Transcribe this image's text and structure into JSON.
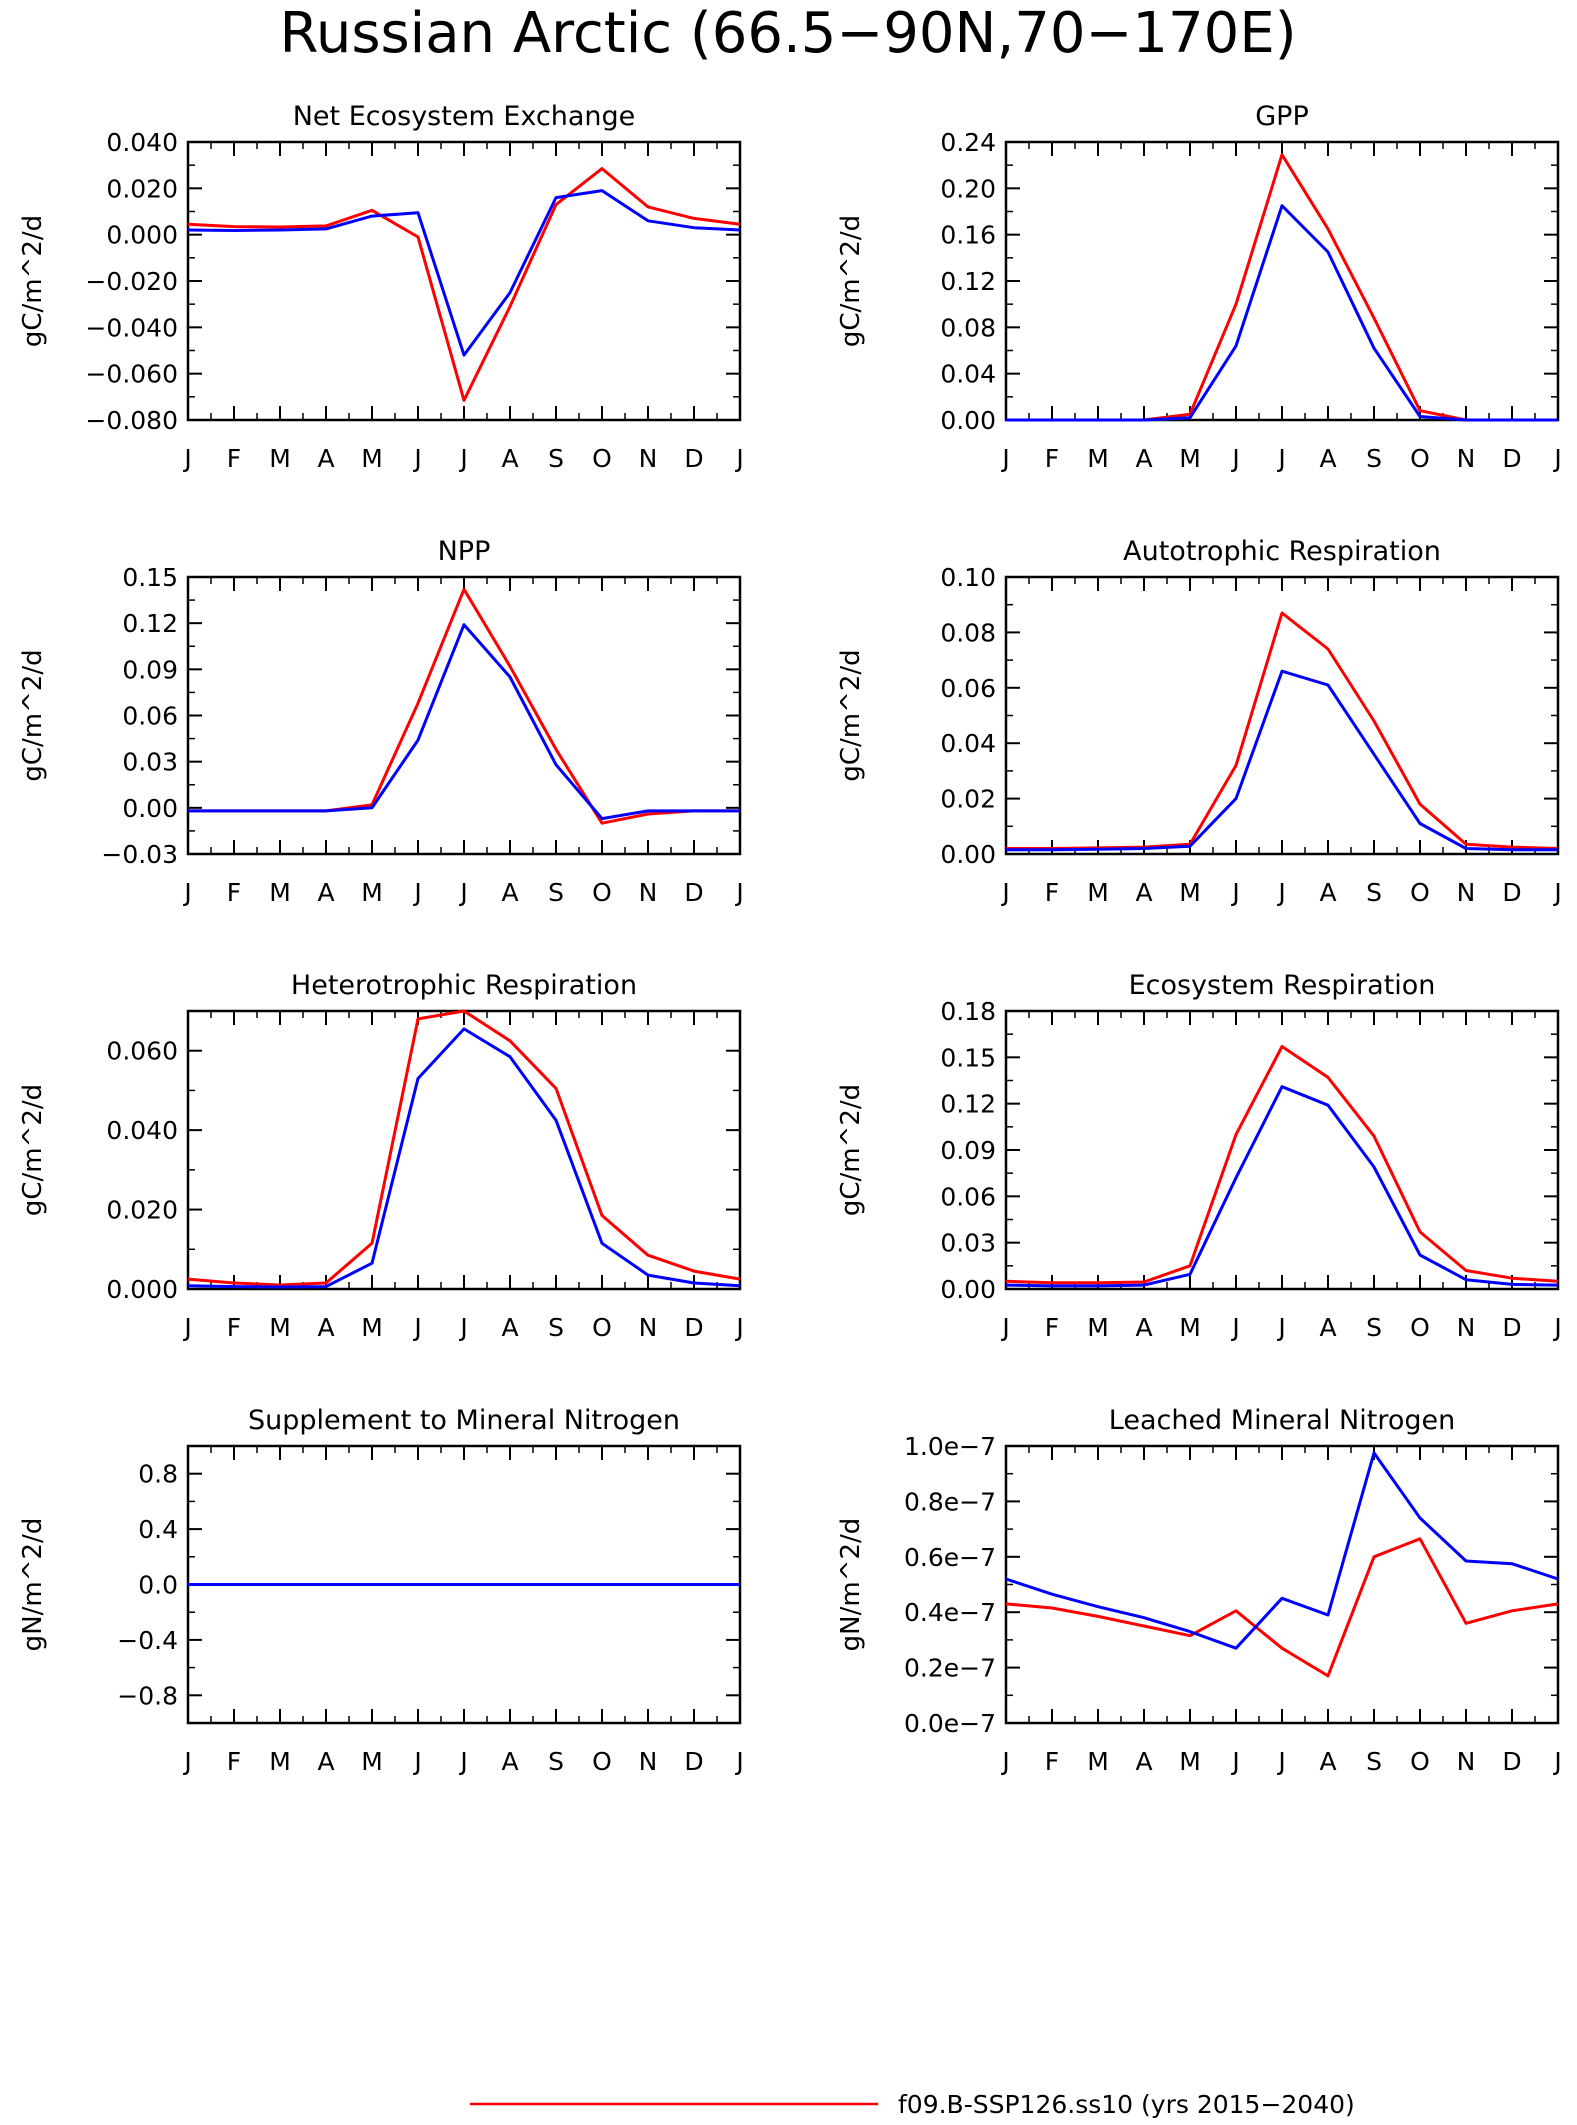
{
  "page_title": "Russian Arctic (66.5−90N,70−170E)",
  "colors": {
    "series1": "#ff0000",
    "series2": "#0000ff",
    "axis": "#000000"
  },
  "legend": {
    "series1_label": "f09.B-SSP126.ss10 (yrs 2015−2040)"
  },
  "chart_data": [
    {
      "type": "line",
      "title": "Net Ecosystem Exchange",
      "ylabel": "gC/m^2/d",
      "categories": [
        "J",
        "F",
        "M",
        "A",
        "M",
        "J",
        "J",
        "A",
        "S",
        "O",
        "N",
        "D",
        "J"
      ],
      "ylim": [
        -0.08,
        0.04
      ],
      "yticks": [
        -0.08,
        -0.06,
        -0.04,
        -0.02,
        0.0,
        0.02,
        0.04
      ],
      "ytick_labels": [
        "−0.080",
        "−0.060",
        "−0.040",
        "−0.020",
        "0.000",
        "0.020",
        "0.040"
      ],
      "series": [
        {
          "values": [
            0.0045,
            0.0035,
            0.0033,
            0.0038,
            0.0105,
            -0.001,
            -0.0715,
            -0.031,
            0.013,
            0.0285,
            0.012,
            0.007,
            0.0045
          ]
        },
        {
          "values": [
            0.002,
            0.0018,
            0.002,
            0.0025,
            0.008,
            0.0095,
            -0.052,
            -0.025,
            0.016,
            0.019,
            0.006,
            0.003,
            0.002
          ]
        }
      ]
    },
    {
      "type": "line",
      "title": "GPP",
      "ylabel": "gC/m^2/d",
      "categories": [
        "J",
        "F",
        "M",
        "A",
        "M",
        "J",
        "J",
        "A",
        "S",
        "O",
        "N",
        "D",
        "J"
      ],
      "ylim": [
        0.0,
        0.24
      ],
      "yticks": [
        0.0,
        0.04,
        0.08,
        0.12,
        0.16,
        0.2,
        0.24
      ],
      "ytick_labels": [
        "0.00",
        "0.04",
        "0.08",
        "0.12",
        "0.16",
        "0.20",
        "0.24"
      ],
      "series": [
        {
          "values": [
            0.0,
            0.0,
            0.0,
            0.0,
            0.005,
            0.1,
            0.229,
            0.165,
            0.088,
            0.008,
            0.0,
            0.0,
            0.0
          ]
        },
        {
          "values": [
            0.0,
            0.0,
            0.0,
            0.0,
            0.002,
            0.064,
            0.185,
            0.145,
            0.062,
            0.003,
            0.0,
            0.0,
            0.0
          ]
        }
      ]
    },
    {
      "type": "line",
      "title": "NPP",
      "ylabel": "gC/m^2/d",
      "categories": [
        "J",
        "F",
        "M",
        "A",
        "M",
        "J",
        "J",
        "A",
        "S",
        "O",
        "N",
        "D",
        "J"
      ],
      "ylim": [
        -0.03,
        0.15
      ],
      "yticks": [
        -0.03,
        0.0,
        0.03,
        0.06,
        0.09,
        0.12,
        0.15
      ],
      "ytick_labels": [
        "−0.03",
        "0.00",
        "0.03",
        "0.06",
        "0.09",
        "0.12",
        "0.15"
      ],
      "series": [
        {
          "values": [
            -0.002,
            -0.002,
            -0.002,
            -0.002,
            0.002,
            0.068,
            0.142,
            0.092,
            0.038,
            -0.01,
            -0.004,
            -0.002,
            -0.002
          ]
        },
        {
          "values": [
            -0.002,
            -0.002,
            -0.002,
            -0.002,
            0.0,
            0.044,
            0.119,
            0.085,
            0.028,
            -0.007,
            -0.002,
            -0.002,
            -0.002
          ]
        }
      ]
    },
    {
      "type": "line",
      "title": "Autotrophic Respiration",
      "ylabel": "gC/m^2/d",
      "categories": [
        "J",
        "F",
        "M",
        "A",
        "M",
        "J",
        "J",
        "A",
        "S",
        "O",
        "N",
        "D",
        "J"
      ],
      "ylim": [
        0.0,
        0.1
      ],
      "yticks": [
        0.0,
        0.02,
        0.04,
        0.06,
        0.08,
        0.1
      ],
      "ytick_labels": [
        "0.00",
        "0.02",
        "0.04",
        "0.06",
        "0.08",
        "0.10"
      ],
      "series": [
        {
          "values": [
            0.002,
            0.002,
            0.0022,
            0.0025,
            0.0035,
            0.032,
            0.087,
            0.074,
            0.048,
            0.018,
            0.0035,
            0.0025,
            0.002
          ]
        },
        {
          "values": [
            0.0015,
            0.0015,
            0.0017,
            0.002,
            0.0028,
            0.02,
            0.066,
            0.061,
            0.036,
            0.011,
            0.002,
            0.0015,
            0.0015
          ]
        }
      ]
    },
    {
      "type": "line",
      "title": "Heterotrophic Respiration",
      "ylabel": "gC/m^2/d",
      "categories": [
        "J",
        "F",
        "M",
        "A",
        "M",
        "J",
        "J",
        "A",
        "S",
        "O",
        "N",
        "D",
        "J"
      ],
      "ylim": [
        0.0,
        0.07
      ],
      "yticks": [
        0.0,
        0.02,
        0.04,
        0.06
      ],
      "ytick_labels": [
        "0.000",
        "0.020",
        "0.040",
        "0.060"
      ],
      "series": [
        {
          "values": [
            0.0025,
            0.0015,
            0.001,
            0.0015,
            0.0115,
            0.068,
            0.07,
            0.0625,
            0.0505,
            0.0185,
            0.0085,
            0.0045,
            0.0025
          ]
        },
        {
          "values": [
            0.0008,
            0.0006,
            0.0005,
            0.0006,
            0.0065,
            0.053,
            0.0655,
            0.0585,
            0.0425,
            0.0115,
            0.0035,
            0.0015,
            0.0008
          ]
        }
      ]
    },
    {
      "type": "line",
      "title": "Ecosystem Respiration",
      "ylabel": "gC/m^2/d",
      "categories": [
        "J",
        "F",
        "M",
        "A",
        "M",
        "J",
        "J",
        "A",
        "S",
        "O",
        "N",
        "D",
        "J"
      ],
      "ylim": [
        0.0,
        0.18
      ],
      "yticks": [
        0.0,
        0.03,
        0.06,
        0.09,
        0.12,
        0.15,
        0.18
      ],
      "ytick_labels": [
        "0.00",
        "0.03",
        "0.06",
        "0.09",
        "0.12",
        "0.15",
        "0.18"
      ],
      "series": [
        {
          "values": [
            0.005,
            0.004,
            0.004,
            0.0045,
            0.015,
            0.1,
            0.157,
            0.137,
            0.099,
            0.037,
            0.012,
            0.007,
            0.005
          ]
        },
        {
          "values": [
            0.0025,
            0.002,
            0.002,
            0.0025,
            0.0095,
            0.072,
            0.131,
            0.119,
            0.079,
            0.022,
            0.006,
            0.003,
            0.0025
          ]
        }
      ]
    },
    {
      "type": "line",
      "title": "Supplement to Mineral Nitrogen",
      "ylabel": "gN/m^2/d",
      "categories": [
        "J",
        "F",
        "M",
        "A",
        "M",
        "J",
        "J",
        "A",
        "S",
        "O",
        "N",
        "D",
        "J"
      ],
      "ylim": [
        -1.0,
        1.0
      ],
      "yticks": [
        -0.8,
        -0.4,
        0.0,
        0.4,
        0.8
      ],
      "ytick_labels": [
        "−0.8",
        "−0.4",
        "0.0",
        "0.4",
        "0.8"
      ],
      "series": [
        {
          "values": [
            0,
            0,
            0,
            0,
            0,
            0,
            0,
            0,
            0,
            0,
            0,
            0,
            0
          ]
        },
        {
          "values": [
            0,
            0,
            0,
            0,
            0,
            0,
            0,
            0,
            0,
            0,
            0,
            0,
            0
          ]
        }
      ]
    },
    {
      "type": "line",
      "title": "Leached Mineral Nitrogen",
      "ylabel": "gN/m^2/d",
      "categories": [
        "J",
        "F",
        "M",
        "A",
        "M",
        "J",
        "J",
        "A",
        "S",
        "O",
        "N",
        "D",
        "J"
      ],
      "ylim": [
        0.0,
        1e-07
      ],
      "yticks": [
        0.0,
        2e-08,
        4e-08,
        6e-08,
        8e-08,
        1e-07
      ],
      "ytick_labels": [
        "0.0e−7",
        "0.2e−7",
        "0.4e−7",
        "0.6e−7",
        "0.8e−7",
        "1.0e−7"
      ],
      "series": [
        {
          "values": [
            4.3e-08,
            4.15e-08,
            3.85e-08,
            3.5e-08,
            3.15e-08,
            4.05e-08,
            2.7e-08,
            1.7e-08,
            6e-08,
            6.65e-08,
            3.6e-08,
            4.05e-08,
            4.3e-08
          ]
        },
        {
          "values": [
            5.2e-08,
            4.65e-08,
            4.2e-08,
            3.8e-08,
            3.3e-08,
            2.7e-08,
            4.5e-08,
            3.9e-08,
            9.75e-08,
            7.4e-08,
            5.85e-08,
            5.75e-08,
            5.2e-08
          ]
        }
      ]
    }
  ]
}
